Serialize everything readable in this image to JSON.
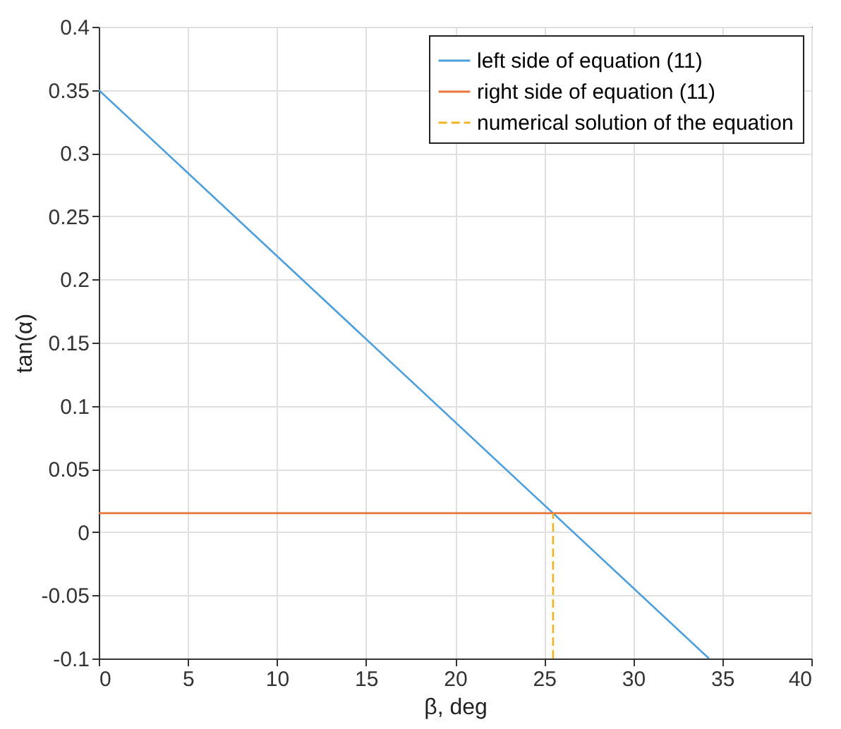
{
  "chart_data": {
    "type": "line",
    "xlabel": "β, deg",
    "ylabel": "tan(α)",
    "xlim": [
      0,
      40
    ],
    "xticks": [
      0,
      5,
      10,
      15,
      20,
      25,
      30,
      35,
      40
    ],
    "ylim": [
      -0.1,
      0.4
    ],
    "yticks": [
      -0.1,
      -0.05,
      0,
      0.05,
      0.1,
      0.15,
      0.2,
      0.25,
      0.3,
      0.35,
      0.4
    ],
    "grid": true,
    "legend": "top right",
    "series": [
      {
        "name": "left side of equation (11)",
        "color": "#4d9fdc",
        "line_style": "solid",
        "x": [
          0,
          34.25
        ],
        "values": [
          0.35,
          -0.1
        ]
      },
      {
        "name": "right side of equation (11)",
        "color": "#e8743b",
        "line_style": "solid",
        "x": [
          0,
          40
        ],
        "values": [
          0.015,
          0.015
        ]
      },
      {
        "name": "numerical solution of the equation",
        "color": "#f0b323",
        "line_style": "dashed",
        "x": [
          25.5,
          25.5
        ],
        "values": [
          -0.1,
          0.015
        ]
      }
    ]
  }
}
